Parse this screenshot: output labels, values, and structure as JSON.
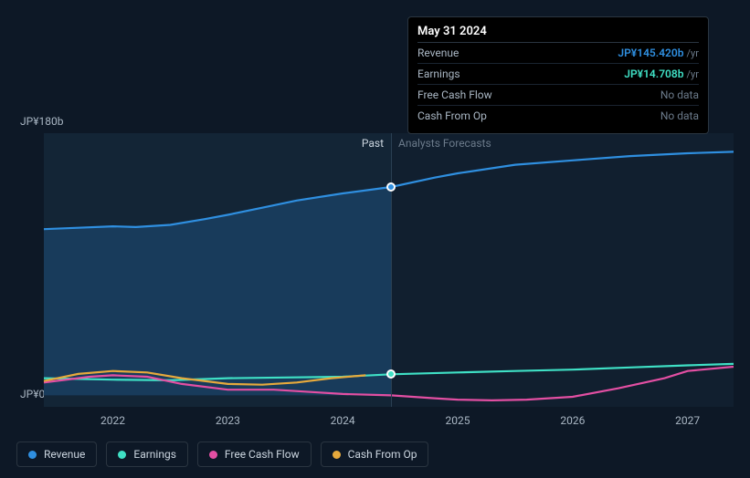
{
  "chart": {
    "background_color": "#0d1826",
    "past_fill": "#132536",
    "forecast_fill": "#111f2f",
    "grid_color": "#2a3f52",
    "text_color": "#aab7c4",
    "y_axis": {
      "min": 0,
      "max": 180,
      "labels": [
        "JP¥180b",
        "JP¥0"
      ]
    },
    "x_axis": {
      "min": 2021.4,
      "max": 2027.4,
      "ticks": [
        2022,
        2023,
        2024,
        2025,
        2026,
        2027
      ]
    },
    "current_x": 2024.42,
    "section_labels": {
      "past": "Past",
      "forecast": "Analysts Forecasts"
    },
    "series": [
      {
        "id": "revenue",
        "label": "Revenue",
        "color": "#2f8fe0",
        "area_fill": "rgba(47,143,224,0.22)",
        "points": [
          [
            2021.4,
            116
          ],
          [
            2021.7,
            117
          ],
          [
            2022.0,
            118
          ],
          [
            2022.2,
            117.5
          ],
          [
            2022.5,
            119
          ],
          [
            2022.8,
            123
          ],
          [
            2023.0,
            126
          ],
          [
            2023.3,
            131
          ],
          [
            2023.6,
            136
          ],
          [
            2024.0,
            141
          ],
          [
            2024.42,
            145.42
          ],
          [
            2024.8,
            152
          ],
          [
            2025.0,
            155
          ],
          [
            2025.5,
            161
          ],
          [
            2026.0,
            164
          ],
          [
            2026.5,
            167
          ],
          [
            2027.0,
            169
          ],
          [
            2027.4,
            170
          ]
        ]
      },
      {
        "id": "earnings",
        "label": "Earnings",
        "color": "#3fe0c5",
        "points": [
          [
            2021.4,
            12
          ],
          [
            2022.0,
            11
          ],
          [
            2022.5,
            10.5
          ],
          [
            2023.0,
            12
          ],
          [
            2023.5,
            12.5
          ],
          [
            2024.0,
            13
          ],
          [
            2024.42,
            14.708
          ],
          [
            2025.0,
            16
          ],
          [
            2025.5,
            17
          ],
          [
            2026.0,
            18
          ],
          [
            2026.5,
            19.5
          ],
          [
            2027.0,
            21
          ],
          [
            2027.4,
            22
          ]
        ]
      },
      {
        "id": "fcf",
        "label": "Free Cash Flow",
        "color": "#e34fa3",
        "points": [
          [
            2021.4,
            9
          ],
          [
            2021.8,
            13
          ],
          [
            2022.0,
            14
          ],
          [
            2022.3,
            13
          ],
          [
            2022.6,
            8
          ],
          [
            2023.0,
            4
          ],
          [
            2023.4,
            4
          ],
          [
            2023.8,
            2
          ],
          [
            2024.0,
            1
          ],
          [
            2024.42,
            0
          ],
          [
            2024.8,
            -2
          ],
          [
            2025.0,
            -3
          ],
          [
            2025.3,
            -3.5
          ],
          [
            2025.6,
            -3
          ],
          [
            2026.0,
            -1
          ],
          [
            2026.4,
            5
          ],
          [
            2026.8,
            12
          ],
          [
            2027.0,
            17
          ],
          [
            2027.4,
            20
          ]
        ]
      },
      {
        "id": "cfo",
        "label": "Cash From Op",
        "color": "#e6a93c",
        "past_only": true,
        "points": [
          [
            2021.4,
            10
          ],
          [
            2021.7,
            15
          ],
          [
            2022.0,
            17
          ],
          [
            2022.3,
            16
          ],
          [
            2022.6,
            12
          ],
          [
            2023.0,
            8
          ],
          [
            2023.3,
            7.5
          ],
          [
            2023.6,
            9
          ],
          [
            2023.9,
            12
          ],
          [
            2024.2,
            14
          ],
          [
            2024.42,
            null
          ]
        ]
      }
    ],
    "markers": [
      {
        "series": "revenue",
        "x": 2024.42,
        "y": 145.42,
        "color": "#2f8fe0"
      },
      {
        "series": "earnings",
        "x": 2024.42,
        "y": 14.708,
        "color": "#3fe0c5"
      }
    ]
  },
  "tooltip": {
    "date": "May 31 2024",
    "rows": [
      {
        "label": "Revenue",
        "value": "JP¥145.420b",
        "unit": "/yr",
        "color": "#2f8fe0"
      },
      {
        "label": "Earnings",
        "value": "JP¥14.708b",
        "unit": "/yr",
        "color": "#3fe0c5"
      },
      {
        "label": "Free Cash Flow",
        "value": "No data",
        "no_data": true
      },
      {
        "label": "Cash From Op",
        "value": "No data",
        "no_data": true
      }
    ]
  },
  "legend": [
    {
      "id": "revenue",
      "label": "Revenue",
      "color": "#2f8fe0"
    },
    {
      "id": "earnings",
      "label": "Earnings",
      "color": "#3fe0c5"
    },
    {
      "id": "fcf",
      "label": "Free Cash Flow",
      "color": "#e34fa3"
    },
    {
      "id": "cfo",
      "label": "Cash From Op",
      "color": "#e6a93c"
    }
  ]
}
